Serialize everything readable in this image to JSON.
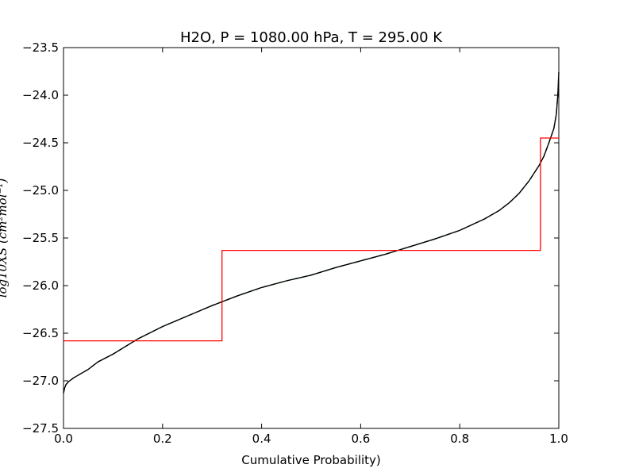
{
  "chart_data": {
    "type": "line",
    "title": "H2O, P = 1080.00 hPa, T = 295.00 K",
    "xlabel": "Cumulative Probability)",
    "ylabel": "log10XS (cm²mol⁻¹)",
    "xlim": [
      0.0,
      1.0
    ],
    "ylim": [
      -27.5,
      -23.5
    ],
    "xticks": [
      0.0,
      0.2,
      0.4,
      0.6,
      0.8,
      1.0
    ],
    "xtick_labels": [
      "0.0",
      "0.2",
      "0.4",
      "0.6",
      "0.8",
      "1.0"
    ],
    "yticks": [
      -23.5,
      -24.0,
      -24.5,
      -25.0,
      -25.5,
      -26.0,
      -26.5,
      -27.0,
      -27.5
    ],
    "ytick_labels": [
      "−23.5",
      "−24.0",
      "−24.5",
      "−25.0",
      "−25.5",
      "−26.0",
      "−26.5",
      "−27.0",
      "−27.5"
    ],
    "grid": false,
    "series": [
      {
        "style": "dashed",
        "color": "#008000",
        "x": [
          0.0,
          0.002,
          0.005,
          0.01,
          0.02,
          0.03,
          0.05,
          0.07,
          0.1,
          0.15,
          0.2,
          0.25,
          0.3,
          0.35,
          0.4,
          0.45,
          0.5,
          0.55,
          0.6,
          0.65,
          0.7,
          0.75,
          0.8,
          0.85,
          0.88,
          0.9,
          0.92,
          0.94,
          0.96,
          0.97,
          0.98,
          0.99,
          0.995,
          0.998,
          1.0
        ],
        "y": [
          -27.13,
          -27.08,
          -27.04,
          -27.01,
          -26.97,
          -26.94,
          -26.88,
          -26.8,
          -26.72,
          -26.56,
          -26.43,
          -26.32,
          -26.21,
          -26.11,
          -26.02,
          -25.95,
          -25.89,
          -25.81,
          -25.74,
          -25.67,
          -25.59,
          -25.51,
          -25.42,
          -25.3,
          -25.21,
          -25.13,
          -25.03,
          -24.9,
          -24.74,
          -24.64,
          -24.5,
          -24.35,
          -24.2,
          -24.0,
          -23.76
        ]
      },
      {
        "style": "solid",
        "color": "#000000",
        "x": [
          0.0,
          0.002,
          0.005,
          0.01,
          0.02,
          0.03,
          0.05,
          0.07,
          0.1,
          0.15,
          0.2,
          0.25,
          0.3,
          0.35,
          0.4,
          0.45,
          0.5,
          0.55,
          0.6,
          0.65,
          0.7,
          0.75,
          0.8,
          0.85,
          0.88,
          0.9,
          0.92,
          0.94,
          0.96,
          0.97,
          0.98,
          0.99,
          0.995,
          0.998,
          1.0
        ],
        "y": [
          -27.13,
          -27.08,
          -27.04,
          -27.01,
          -26.97,
          -26.94,
          -26.88,
          -26.8,
          -26.72,
          -26.56,
          -26.43,
          -26.32,
          -26.21,
          -26.11,
          -26.02,
          -25.95,
          -25.89,
          -25.81,
          -25.74,
          -25.67,
          -25.59,
          -25.51,
          -25.42,
          -25.3,
          -25.21,
          -25.13,
          -25.03,
          -24.9,
          -24.74,
          -24.64,
          -24.5,
          -24.35,
          -24.2,
          -24.0,
          -23.76
        ]
      },
      {
        "style": "step",
        "color": "#ff0000",
        "x": [
          0.0,
          0.32,
          0.32,
          0.963,
          0.963,
          1.0
        ],
        "y": [
          -26.58,
          -26.58,
          -25.63,
          -25.63,
          -24.45,
          -24.45
        ]
      }
    ]
  }
}
